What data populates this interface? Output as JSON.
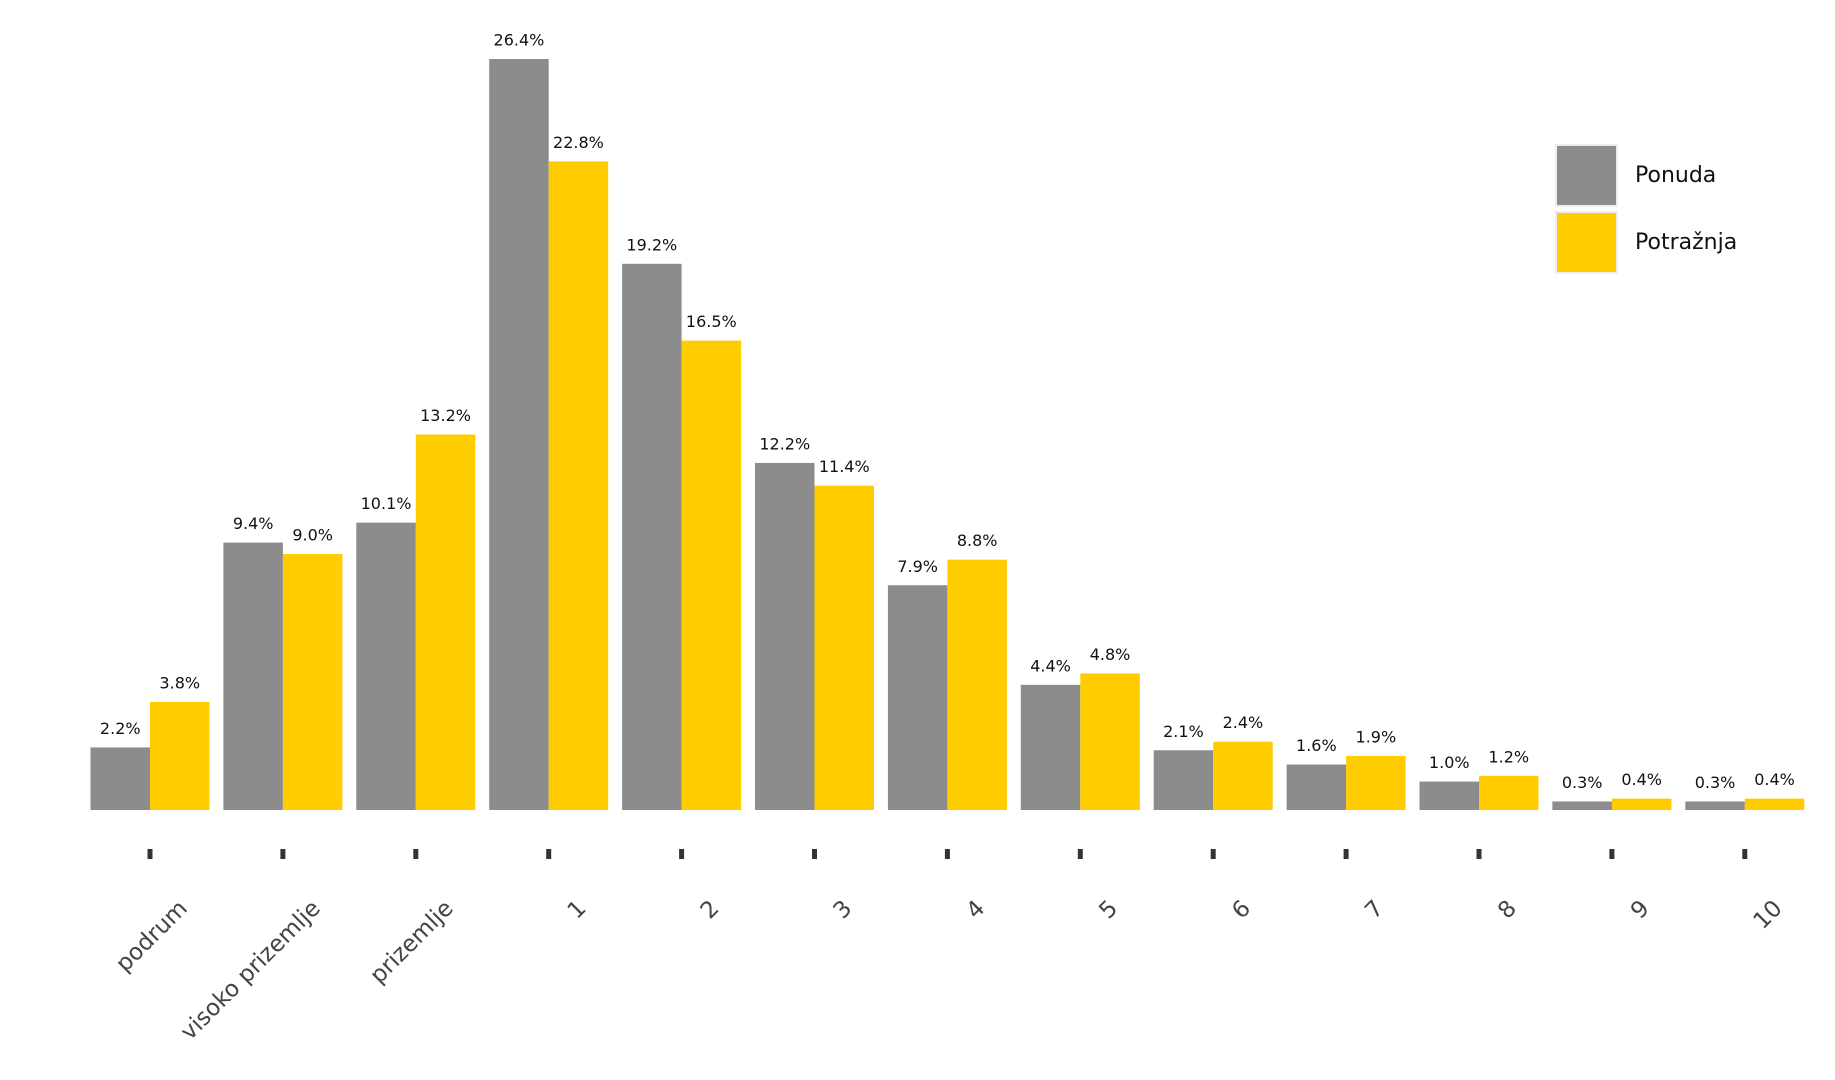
{
  "chart_data": {
    "type": "bar",
    "categories": [
      "podrum",
      "visoko prizemlje",
      "prizemlje",
      "1",
      "2",
      "3",
      "4",
      "5",
      "6",
      "7",
      "8",
      "9",
      "10"
    ],
    "series": [
      {
        "name": "Ponuda",
        "color": "#8c8c8c",
        "values": [
          2.2,
          9.4,
          10.1,
          26.4,
          19.2,
          12.2,
          7.9,
          4.4,
          2.1,
          1.6,
          1.0,
          0.3,
          0.3
        ],
        "value_labels": [
          "2.2%",
          "9.4%",
          "10.1%",
          "26.4%",
          "19.2%",
          "12.2%",
          "7.9%",
          "4.4%",
          "2.1%",
          "1.6%",
          "1.0%",
          "0.3%",
          "0.3%"
        ]
      },
      {
        "name": "Potražnja",
        "color": "#ffcc00",
        "values": [
          3.8,
          9.0,
          13.2,
          22.8,
          16.5,
          11.4,
          8.8,
          4.8,
          2.4,
          1.9,
          1.2,
          0.4,
          0.4
        ],
        "value_labels": [
          "3.8%",
          "9.0%",
          "13.2%",
          "22.8%",
          "16.5%",
          "11.4%",
          "8.8%",
          "4.8%",
          "2.4%",
          "1.9%",
          "1.2%",
          "0.4%",
          "0.4%"
        ]
      }
    ],
    "legend": "upper right"
  }
}
